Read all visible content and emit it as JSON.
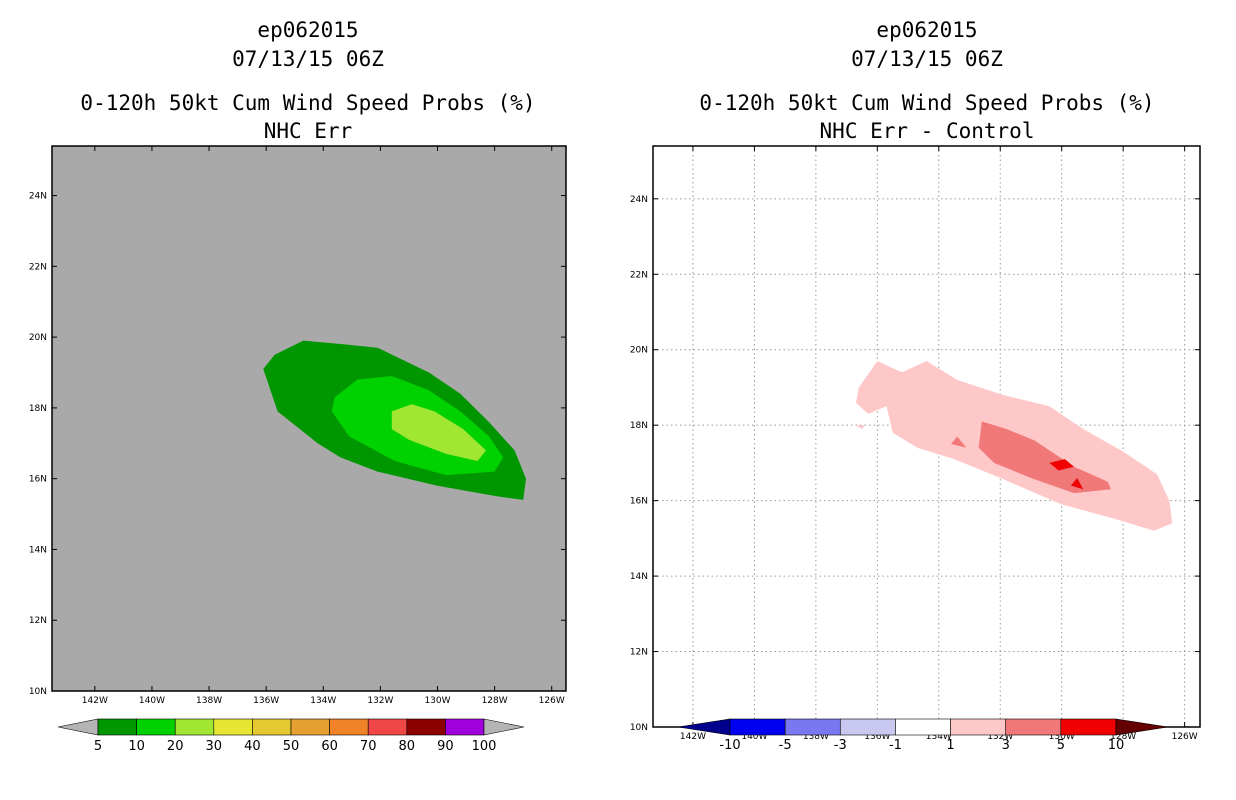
{
  "chart_data": [
    {
      "type": "filled_contour_map",
      "storm": "ep062015",
      "datetime": "07/13/15 06Z",
      "title": "0-120h 50kt Cum Wind Speed Probs (%)",
      "subtitle": "NHC Err",
      "xlim": [
        -143.5,
        -125.5
      ],
      "ylim": [
        10,
        25.4
      ],
      "xticks": [
        -142,
        -140,
        -138,
        -136,
        -134,
        -132,
        -130,
        -128,
        -126
      ],
      "xtick_labels": [
        "142W",
        "140W",
        "138W",
        "136W",
        "134W",
        "132W",
        "130W",
        "128W",
        "126W"
      ],
      "yticks": [
        10,
        12,
        14,
        16,
        18,
        20,
        22,
        24
      ],
      "ytick_labels": [
        "10N",
        "12N",
        "14N",
        "16N",
        "18N",
        "20N",
        "22N",
        "24N"
      ],
      "grid": false,
      "background_color": "#a9a9a9",
      "colorbar": {
        "labels": [
          "5",
          "10",
          "20",
          "30",
          "40",
          "50",
          "60",
          "70",
          "80",
          "90",
          "100"
        ],
        "colors": [
          "#009600",
          "#00d200",
          "#a0e632",
          "#e6e632",
          "#e6c832",
          "#e6a032",
          "#f08228",
          "#f04646",
          "#8c0000",
          "#a000dc"
        ],
        "under_color": "#b4b4b4",
        "over_color": "#b4b4b4"
      },
      "contours": [
        {
          "level": "5-10",
          "color": "#009600",
          "points": [
            [
              -136.1,
              19.1
            ],
            [
              -135.7,
              19.5
            ],
            [
              -134.7,
              19.9
            ],
            [
              -133.3,
              19.8
            ],
            [
              -132.1,
              19.7
            ],
            [
              -130.3,
              19.0
            ],
            [
              -129.2,
              18.4
            ],
            [
              -128.2,
              17.6
            ],
            [
              -127.3,
              16.8
            ],
            [
              -126.9,
              16.0
            ],
            [
              -127.0,
              15.4
            ],
            [
              -127.9,
              15.5
            ],
            [
              -130.0,
              15.8
            ],
            [
              -132.1,
              16.2
            ],
            [
              -133.4,
              16.6
            ],
            [
              -134.2,
              17.0
            ],
            [
              -135.6,
              17.9
            ]
          ]
        },
        {
          "level": "10-20",
          "color": "#00d200",
          "points": [
            [
              -133.6,
              18.3
            ],
            [
              -132.8,
              18.8
            ],
            [
              -131.6,
              18.9
            ],
            [
              -130.3,
              18.5
            ],
            [
              -129.2,
              17.9
            ],
            [
              -128.2,
              17.2
            ],
            [
              -127.7,
              16.6
            ],
            [
              -128.0,
              16.2
            ],
            [
              -129.7,
              16.1
            ],
            [
              -131.5,
              16.5
            ],
            [
              -133.1,
              17.2
            ],
            [
              -133.7,
              17.9
            ]
          ]
        },
        {
          "level": "20-30",
          "color": "#a0e632",
          "points": [
            [
              -131.6,
              17.9
            ],
            [
              -130.9,
              18.1
            ],
            [
              -130.1,
              17.9
            ],
            [
              -129.1,
              17.4
            ],
            [
              -128.3,
              16.8
            ],
            [
              -128.6,
              16.5
            ],
            [
              -129.7,
              16.7
            ],
            [
              -131.0,
              17.1
            ],
            [
              -131.6,
              17.4
            ]
          ]
        }
      ]
    },
    {
      "type": "filled_contour_map",
      "storm": "ep062015",
      "datetime": "07/13/15 06Z",
      "title": "0-120h 50kt Cum Wind Speed Probs (%)",
      "subtitle": "NHC Err - Control",
      "xlim": [
        -143.3,
        -125.5
      ],
      "ylim": [
        10,
        25.4
      ],
      "xticks": [
        -142,
        -140,
        -138,
        -136,
        -134,
        -132,
        -130,
        -128,
        -126
      ],
      "xtick_labels": [
        "142W",
        "140W",
        "138W",
        "136W",
        "134W",
        "132W",
        "130W",
        "128W",
        "126W"
      ],
      "yticks": [
        10,
        12,
        14,
        16,
        18,
        20,
        22,
        24
      ],
      "ytick_labels": [
        "10N",
        "12N",
        "14N",
        "16N",
        "18N",
        "20N",
        "22N",
        "24N"
      ],
      "grid": true,
      "background_color": "#ffffff",
      "colorbar": {
        "labels": [
          "-10",
          "-5",
          "-3",
          "-1",
          "1",
          "3",
          "5",
          "10"
        ],
        "colors": [
          "#0000f0",
          "#7878f0",
          "#c8c8f0",
          "#ffffff",
          "#ffc8c8",
          "#f07878",
          "#f00000"
        ],
        "under_color": "#00008c",
        "over_color": "#640000"
      },
      "contours": [
        {
          "level": "1-3",
          "color": "#ffc8c8",
          "points": [
            [
              -136.6,
              19.0
            ],
            [
              -136.0,
              19.7
            ],
            [
              -135.2,
              19.4
            ],
            [
              -134.4,
              19.7
            ],
            [
              -133.4,
              19.2
            ],
            [
              -131.9,
              18.8
            ],
            [
              -130.4,
              18.5
            ],
            [
              -129.3,
              17.9
            ],
            [
              -128.0,
              17.3
            ],
            [
              -126.9,
              16.7
            ],
            [
              -126.5,
              16.0
            ],
            [
              -126.4,
              15.4
            ],
            [
              -127.0,
              15.2
            ],
            [
              -128.2,
              15.5
            ],
            [
              -130.0,
              15.9
            ],
            [
              -132.0,
              16.6
            ],
            [
              -133.5,
              17.1
            ],
            [
              -134.7,
              17.4
            ],
            [
              -135.5,
              17.8
            ],
            [
              -135.7,
              18.5
            ],
            [
              -136.3,
              18.3
            ],
            [
              -136.7,
              18.6
            ]
          ]
        },
        {
          "level": "1-3",
          "color": "#ffc8c8",
          "points": [
            [
              -136.7,
              18.0
            ],
            [
              -136.4,
              18.0
            ],
            [
              -136.5,
              17.9
            ]
          ]
        },
        {
          "level": "3-5",
          "color": "#f07878",
          "points": [
            [
              -132.6,
              18.1
            ],
            [
              -131.8,
              17.9
            ],
            [
              -130.9,
              17.6
            ],
            [
              -129.6,
              16.9
            ],
            [
              -128.5,
              16.5
            ],
            [
              -128.4,
              16.3
            ],
            [
              -129.6,
              16.2
            ],
            [
              -131.0,
              16.6
            ],
            [
              -132.2,
              17.0
            ],
            [
              -132.7,
              17.4
            ]
          ]
        },
        {
          "level": "3-5",
          "color": "#f07878",
          "points": [
            [
              -133.4,
              17.7
            ],
            [
              -133.1,
              17.4
            ],
            [
              -133.6,
              17.5
            ]
          ]
        },
        {
          "level": "5-10",
          "color": "#f00000",
          "points": [
            [
              -130.4,
              17.0
            ],
            [
              -129.9,
              17.1
            ],
            [
              -129.6,
              16.9
            ],
            [
              -130.1,
              16.8
            ]
          ]
        },
        {
          "level": "5-10",
          "color": "#f00000",
          "points": [
            [
              -129.5,
              16.6
            ],
            [
              -129.3,
              16.3
            ],
            [
              -129.7,
              16.4
            ]
          ]
        }
      ]
    }
  ],
  "left_panel": {
    "title_line1": "ep062015",
    "title_line2": "07/13/15 06Z",
    "title_line3": "0-120h 50kt Cum Wind Speed Probs (%)",
    "title_line4": "NHC Err"
  },
  "right_panel": {
    "title_line1": "ep062015",
    "title_line2": "07/13/15 06Z",
    "title_line3": "0-120h 50kt Cum Wind Speed Probs (%)",
    "title_line4": "NHC Err - Control"
  }
}
